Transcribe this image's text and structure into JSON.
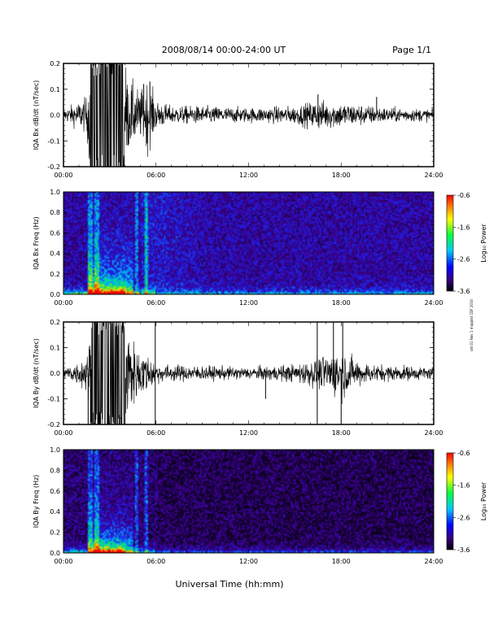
{
  "header": {
    "title": "2008/08/14  00:00-24:00 UT",
    "page": "Page 1/1"
  },
  "side_note": "sdt 01 Nov 1 mapplot CDF 2010",
  "xaxis": {
    "label": "Universal Time (hh:mm)",
    "ticks": [
      "00:00",
      "06:00",
      "12:00",
      "18:00",
      "24:00"
    ],
    "range_hours": [
      0,
      24
    ]
  },
  "colors": {
    "waveform": "#000000",
    "background": "#ffffff",
    "spectrogram_floor": "#1a0033"
  },
  "colorbar": {
    "label": "Log₁₀ Power",
    "ticks": [
      "-0.6",
      "-1.6",
      "-2.6",
      "-3.6"
    ],
    "range": [
      -3.6,
      -0.6
    ]
  },
  "chart_data": [
    {
      "type": "line",
      "ylabel": "IQA Bx dB/dt (nT/sec)",
      "ylim": [
        -0.2,
        0.2
      ],
      "yticks": [
        "0.2",
        "0.1",
        "0.0",
        "-0.1",
        "-0.2"
      ],
      "envelope": [
        {
          "t": 0.0,
          "a": 0.02
        },
        {
          "t": 0.8,
          "a": 0.04
        },
        {
          "t": 1.5,
          "a": 0.06
        },
        {
          "t": 1.8,
          "a": 0.25
        },
        {
          "t": 2.2,
          "a": 0.25
        },
        {
          "t": 3.0,
          "a": 0.25
        },
        {
          "t": 3.8,
          "a": 0.25
        },
        {
          "t": 4.2,
          "a": 0.12
        },
        {
          "t": 5.0,
          "a": 0.08
        },
        {
          "t": 5.5,
          "a": 0.12
        },
        {
          "t": 6.0,
          "a": 0.05
        },
        {
          "t": 7.0,
          "a": 0.03
        },
        {
          "t": 9.0,
          "a": 0.03
        },
        {
          "t": 12.0,
          "a": 0.025
        },
        {
          "t": 15.0,
          "a": 0.03
        },
        {
          "t": 16.5,
          "a": 0.05
        },
        {
          "t": 18.5,
          "a": 0.04
        },
        {
          "t": 21.0,
          "a": 0.025
        },
        {
          "t": 24.0,
          "a": 0.02
        }
      ],
      "spikes": [
        {
          "t": 5.2,
          "y": 0.12
        },
        {
          "t": 5.6,
          "y": 0.13
        },
        {
          "t": 5.4,
          "y": -0.11
        },
        {
          "t": 16.5,
          "y": 0.08
        },
        {
          "t": 20.3,
          "y": 0.07
        }
      ]
    },
    {
      "type": "heatmap",
      "ylabel": "IQA Bx Freq (Hz)",
      "ylim": [
        0.0,
        1.0
      ],
      "yticks": [
        "1.0",
        "0.8",
        "0.6",
        "0.4",
        "0.2",
        "0.0"
      ]
    },
    {
      "type": "line",
      "ylabel": "IQA By dB/dt (nT/sec)",
      "ylim": [
        -0.2,
        0.2
      ],
      "yticks": [
        "0.2",
        "0.1",
        "0.0",
        "-0.1",
        "-0.2"
      ],
      "envelope": [
        {
          "t": 0.0,
          "a": 0.02
        },
        {
          "t": 1.0,
          "a": 0.04
        },
        {
          "t": 1.6,
          "a": 0.08
        },
        {
          "t": 1.9,
          "a": 0.25
        },
        {
          "t": 2.5,
          "a": 0.25
        },
        {
          "t": 3.5,
          "a": 0.25
        },
        {
          "t": 4.0,
          "a": 0.2
        },
        {
          "t": 4.6,
          "a": 0.1
        },
        {
          "t": 5.5,
          "a": 0.06
        },
        {
          "t": 6.2,
          "a": 0.03
        },
        {
          "t": 9.0,
          "a": 0.025
        },
        {
          "t": 12.0,
          "a": 0.02
        },
        {
          "t": 15.0,
          "a": 0.03
        },
        {
          "t": 17.0,
          "a": 0.06
        },
        {
          "t": 18.0,
          "a": 0.09
        },
        {
          "t": 18.8,
          "a": 0.05
        },
        {
          "t": 20.0,
          "a": 0.03
        },
        {
          "t": 24.0,
          "a": 0.02
        }
      ],
      "spikes": [
        {
          "t": 1.6,
          "y": -0.2
        },
        {
          "t": 5.95,
          "y": 0.2
        },
        {
          "t": 5.95,
          "y": -0.2
        },
        {
          "t": 13.1,
          "y": -0.1
        },
        {
          "t": 16.45,
          "y": 0.2
        },
        {
          "t": 16.45,
          "y": -0.2
        },
        {
          "t": 17.5,
          "y": 0.2
        },
        {
          "t": 18.1,
          "y": 0.2
        },
        {
          "t": 18.0,
          "y": -0.2
        }
      ]
    },
    {
      "type": "heatmap",
      "ylabel": "IQA By Freq (Hz)",
      "ylim": [
        0.0,
        1.0
      ],
      "yticks": [
        "1.0",
        "0.8",
        "0.6",
        "0.4",
        "0.2",
        "0.0"
      ]
    }
  ]
}
